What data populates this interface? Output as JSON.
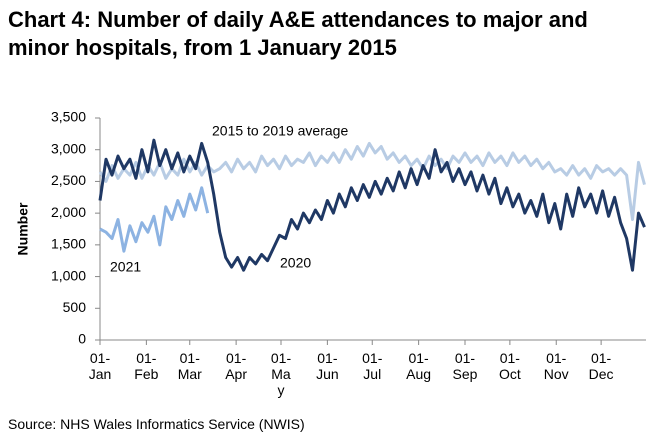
{
  "chart_data": {
    "type": "line",
    "title": "Chart 4: Number of daily A&E attendances to major and minor hospitals, from 1 January 2015",
    "y_label": "Number",
    "source": "Source: NHS Wales Informatics Service (NWIS)",
    "annotations": [
      "2015 to 2019 average",
      "2021",
      "2020"
    ],
    "x": [
      0,
      4,
      8,
      12,
      16,
      20,
      24,
      28,
      32,
      36,
      40,
      44,
      48,
      52,
      56,
      60,
      64,
      68,
      72,
      76,
      80,
      84,
      88,
      92,
      96,
      100,
      104,
      108,
      112,
      116,
      120,
      124,
      128,
      132,
      136,
      140,
      144,
      148,
      152,
      156,
      160,
      164,
      168,
      172,
      176,
      180,
      184,
      188,
      192,
      196,
      200,
      204,
      208,
      212,
      216,
      220,
      224,
      228,
      232,
      236,
      240,
      244,
      248,
      252,
      256,
      260,
      264,
      268,
      272,
      276,
      280,
      284,
      288,
      292,
      296,
      300,
      304,
      308,
      312,
      316,
      320,
      324,
      328,
      332,
      336,
      340,
      344,
      348,
      352,
      356,
      360,
      364
    ],
    "xlim": [
      0,
      365
    ],
    "xticks": [
      {
        "value": 0,
        "label": "01-Jan"
      },
      {
        "value": 31,
        "label": "01-Feb"
      },
      {
        "value": 60,
        "label": "01-Mar"
      },
      {
        "value": 91,
        "label": "01-Apr"
      },
      {
        "value": 121,
        "label": "01-May"
      },
      {
        "value": 152,
        "label": "01-Jun"
      },
      {
        "value": 182,
        "label": "01-Jul"
      },
      {
        "value": 213,
        "label": "01-Aug"
      },
      {
        "value": 244,
        "label": "01-Sep"
      },
      {
        "value": 274,
        "label": "01-Oct"
      },
      {
        "value": 305,
        "label": "01-Nov"
      },
      {
        "value": 335,
        "label": "01-Dec"
      }
    ],
    "ylim": [
      0,
      3500
    ],
    "yticks": [
      0,
      500,
      {
        "value": 1000,
        "label": "1,000"
      },
      {
        "value": 1500,
        "label": "1,500"
      },
      {
        "value": 2000,
        "label": "2,000"
      },
      {
        "value": 2500,
        "label": "2,500"
      },
      {
        "value": 3000,
        "label": "3,000"
      },
      {
        "value": 3500,
        "label": "3,500"
      }
    ],
    "series": [
      {
        "color": "#b8cce4",
        "values": [
          2650,
          2500,
          2750,
          2550,
          2700,
          2600,
          2800,
          2550,
          2750,
          2600,
          2800,
          2550,
          2700,
          2600,
          2850,
          2650,
          2800,
          2600,
          2750,
          2650,
          2700,
          2800,
          2650,
          2850,
          2700,
          2800,
          2650,
          2900,
          2750,
          2850,
          2700,
          2900,
          2750,
          2850,
          2800,
          2950,
          2750,
          2900,
          2800,
          2950,
          2800,
          3000,
          2850,
          3050,
          2900,
          3100,
          2950,
          3050,
          2850,
          2950,
          2800,
          2900,
          2750,
          2850,
          2700,
          2900,
          2750,
          2850,
          2700,
          2900,
          2800,
          2950,
          2800,
          2900,
          2750,
          2950,
          2800,
          2900,
          2750,
          2950,
          2800,
          2900,
          2750,
          2850,
          2700,
          2800,
          2650,
          2700,
          2600,
          2750,
          2600,
          2700,
          2550,
          2750,
          2650,
          2700,
          2600,
          2700,
          2600,
          1900,
          2800,
          2450
        ]
      },
      {
        "color": "#1f3864",
        "values": [
          2200,
          2850,
          2600,
          2900,
          2700,
          2850,
          2550,
          3000,
          2650,
          3150,
          2750,
          3000,
          2700,
          2950,
          2650,
          2900,
          2700,
          3100,
          2800,
          2300,
          1700,
          1300,
          1150,
          1300,
          1100,
          1300,
          1200,
          1350,
          1250,
          1450,
          1650,
          1600,
          1900,
          1750,
          2000,
          1850,
          2050,
          1900,
          2200,
          2000,
          2300,
          2100,
          2400,
          2200,
          2450,
          2250,
          2500,
          2300,
          2550,
          2350,
          2650,
          2400,
          2700,
          2450,
          2750,
          2550,
          3000,
          2650,
          2800,
          2500,
          2700,
          2450,
          2650,
          2350,
          2600,
          2300,
          2550,
          2150,
          2400,
          2100,
          2300,
          2000,
          2200,
          1950,
          2300,
          1850,
          2150,
          1750,
          2300,
          1950,
          2400,
          2100,
          2300,
          2000,
          2350,
          1950,
          2250,
          1850,
          1600,
          1100,
          2000,
          1780
        ]
      },
      {
        "color": "#8db3e2",
        "values": [
          1750,
          1700,
          1600,
          1900,
          1400,
          1800,
          1550,
          1850,
          1700,
          1950,
          1500,
          2100,
          1900,
          2200,
          1950,
          2300,
          2050,
          2400,
          2000,
          null,
          null,
          null,
          null,
          null,
          null,
          null,
          null,
          null,
          null,
          null,
          null,
          null,
          null,
          null,
          null,
          null,
          null,
          null,
          null,
          null,
          null,
          null,
          null,
          null,
          null,
          null,
          null,
          null,
          null,
          null,
          null,
          null,
          null,
          null,
          null,
          null,
          null,
          null,
          null,
          null,
          null,
          null,
          null,
          null,
          null,
          null,
          null,
          null,
          null,
          null,
          null,
          null,
          null,
          null,
          null,
          null,
          null,
          null,
          null,
          null,
          null,
          null,
          null,
          null,
          null,
          null,
          null,
          null,
          null,
          null,
          null,
          null
        ]
      }
    ]
  }
}
